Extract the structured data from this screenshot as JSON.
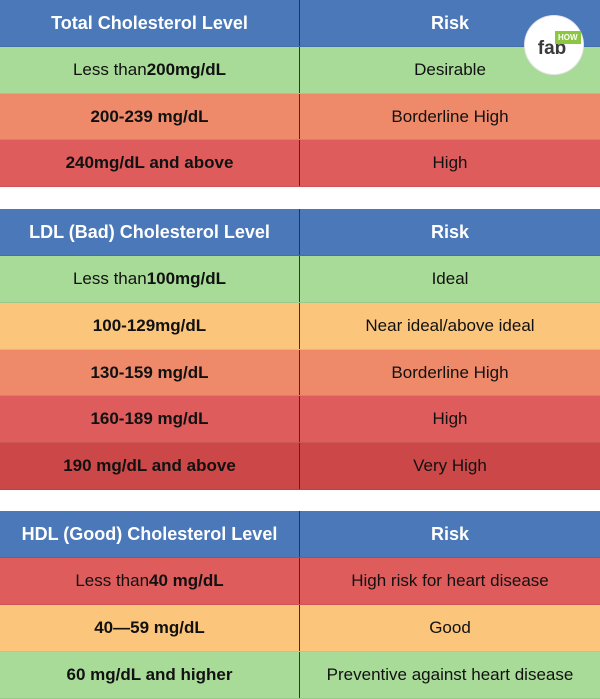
{
  "colors": {
    "header_blue": "#4a78b8",
    "green": "#a8db97",
    "orange_light": "#fbc57b",
    "salmon": "#ee8a6a",
    "red": "#df5c5c",
    "dark_red": "#cc4747",
    "logo_green": "#8dc63f"
  },
  "logo": {
    "text": "fab",
    "badge": "HOW"
  },
  "total": {
    "header": {
      "col1": "Total Cholesterol Level",
      "col2": "Risk"
    },
    "rows": [
      {
        "level_pre": "Less than ",
        "level_bold": "200mg/dL",
        "risk": "Desirable",
        "color": "green"
      },
      {
        "level_pre": "",
        "level_bold": "200-239 mg/dL",
        "risk": "Borderline High",
        "color": "salmon"
      },
      {
        "level_pre": "",
        "level_bold": "240mg/dL and above",
        "risk": "High",
        "color": "red"
      }
    ]
  },
  "ldl": {
    "header": {
      "col1": "LDL (Bad) Cholesterol Level",
      "col2": "Risk"
    },
    "rows": [
      {
        "level_pre": "Less than ",
        "level_bold": "100mg/dL",
        "risk": "Ideal",
        "color": "green"
      },
      {
        "level_pre": "",
        "level_bold": "100-129mg/dL",
        "risk": "Near ideal/above ideal",
        "color": "orange_light"
      },
      {
        "level_pre": "",
        "level_bold": "130-159 mg/dL",
        "risk": "Borderline High",
        "color": "salmon"
      },
      {
        "level_pre": "",
        "level_bold": "160-189 mg/dL",
        "risk": "High",
        "color": "red"
      },
      {
        "level_pre": "",
        "level_bold": "190 mg/dL and above",
        "risk": "Very High",
        "color": "dark_red"
      }
    ]
  },
  "hdl": {
    "header": {
      "col1": "HDL (Good) Cholesterol Level",
      "col2": "Risk"
    },
    "rows": [
      {
        "level_pre": "Less than ",
        "level_bold": "40 mg/dL",
        "risk": "High risk for heart disease",
        "color": "red"
      },
      {
        "level_pre": "",
        "level_bold": "40—59 mg/dL",
        "risk": "Good",
        "color": "orange_light"
      },
      {
        "level_pre": "",
        "level_bold": "60 mg/dL and higher",
        "risk": "Preventive against heart disease",
        "color": "green"
      }
    ]
  }
}
